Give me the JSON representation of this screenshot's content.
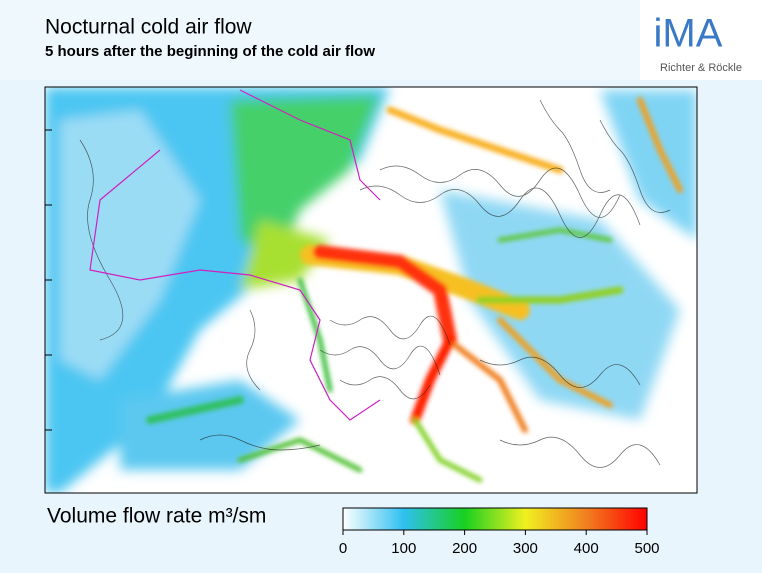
{
  "header": {
    "title": "Nocturnal cold air flow",
    "subtitle": "5 hours after the beginning of the cold air flow"
  },
  "logo": {
    "name": "iMA",
    "company": "Richter & Röckle"
  },
  "colorbar": {
    "label": "Volume flow rate m³/sm",
    "range": [
      0,
      500
    ],
    "ticks": [
      0,
      100,
      200,
      300,
      400,
      500
    ],
    "colors": [
      "#ffffff",
      "#2ec0f0",
      "#18d020",
      "#f0f020",
      "#f08020",
      "#ff0000"
    ]
  }
}
